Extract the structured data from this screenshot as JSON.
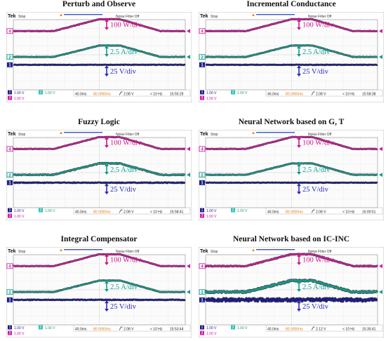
{
  "figure": {
    "panels": [
      {
        "title": "Perturb and Observe",
        "scope": {
          "brand": "Tek",
          "mode": "Stop",
          "filter_label": "Noise Filter Off",
          "ch1_scale": "1.00 V",
          "ch2_scale": "1.00 V",
          "ch3_scale": "1.00 V",
          "timebase": "40.0ms",
          "trigger_pos": "80.0000ms",
          "trigger_level": "2.08 V",
          "freq": "< 10 Hz",
          "timestamp": "15:55:29"
        }
      },
      {
        "title": "Incremental Conductance",
        "scope": {
          "brand": "Tek",
          "mode": "Stop",
          "filter_label": "Noise Filter Off",
          "ch1_scale": "1.00 V",
          "ch2_scale": "1.00 V",
          "ch3_scale": "1.00 V",
          "timebase": "40.0ms",
          "trigger_pos": "80.0000ms",
          "trigger_level": "2.08 V",
          "freq": "< 10 Hz",
          "timestamp": "15:58:38"
        }
      },
      {
        "title": "Fuzzy Logic",
        "scope": {
          "brand": "Tek",
          "mode": "Stop",
          "filter_label": "Noise Filter Off",
          "ch1_scale": "1.00 V",
          "ch2_scale": "1.00 V",
          "ch3_scale": "1.00 V",
          "timebase": "40.0ms",
          "trigger_pos": "80.0000ms",
          "trigger_level": "2.08 V",
          "freq": "< 10 Hz",
          "timestamp": "15:58:41"
        }
      },
      {
        "title": "Neural Network based on G, T",
        "scope": {
          "brand": "Tek",
          "mode": "Stop",
          "filter_label": "Noise Filter Off",
          "ch1_scale": "1.00 V",
          "ch2_scale": "1.00 V",
          "ch3_scale": "1.00 V",
          "timebase": "40.0ms",
          "trigger_pos": "80.0000ms",
          "trigger_level": "2.08 V",
          "freq": "< 10 Hz",
          "timestamp": "16:00:51"
        }
      },
      {
        "title": "Integral Compensator",
        "scope": {
          "brand": "Tek",
          "mode": "Stop",
          "filter_label": "Noise Filter Off",
          "ch1_scale": "1.00 V",
          "ch2_scale": "1.00 V",
          "ch3_scale": "1.00 V",
          "timebase": "40.0ms",
          "trigger_pos": "80.0000ms",
          "trigger_level": "2.08 V",
          "freq": "< 10 Hz",
          "timestamp": "15:53:44"
        }
      },
      {
        "title": "Neural Network based on IC-INC",
        "scope": {
          "brand": "Tek",
          "mode": "Stop",
          "filter_label": "Noise Filter Off",
          "ch1_scale": "1.00 V",
          "ch2_scale": "1.00 V",
          "ch3_scale": "1.00 V",
          "timebase": "40.0ms",
          "trigger_pos": "80.0000ms",
          "trigger_level": "2.12 V",
          "freq": "< 10 Hz",
          "timestamp": "15:35:41"
        }
      }
    ]
  },
  "chart_data": [
    {
      "type": "line",
      "title": "Perturb and Observe",
      "x_divisions": 10,
      "y_divisions": 8,
      "grid": true,
      "series": [
        {
          "name": "",
          "channel": 4,
          "scale_label": "100 W/div",
          "color": "#d01aa0",
          "x": [
            0,
            2.35,
            5.0,
            6.2,
            8.55,
            10
          ],
          "y": [
            6.7,
            6.7,
            8.05,
            8.05,
            6.7,
            6.7
          ],
          "noise": 0.03
        },
        {
          "name": "",
          "channel": 2,
          "scale_label": "2.5 A/div",
          "color": "#149b8c",
          "x": [
            0,
            2.35,
            5.0,
            6.2,
            8.55,
            10
          ],
          "y": [
            3.75,
            3.75,
            5.05,
            5.05,
            3.75,
            3.75
          ],
          "noise": 0.03
        },
        {
          "name": "",
          "channel": 1,
          "scale_label": "25 V/div",
          "color": "#1c1c8c",
          "x": [
            0,
            10
          ],
          "y": [
            2.85,
            2.85
          ],
          "noise": 0.03
        }
      ]
    },
    {
      "type": "line",
      "title": "Incremental Conductance",
      "x_divisions": 10,
      "y_divisions": 8,
      "grid": true,
      "series": [
        {
          "name": "",
          "channel": 4,
          "scale_label": "100 W/div",
          "color": "#d01aa0",
          "x": [
            0,
            2.35,
            5.0,
            6.2,
            8.55,
            10
          ],
          "y": [
            6.7,
            6.7,
            8.05,
            8.05,
            6.7,
            6.7
          ],
          "noise": 0.03
        },
        {
          "name": "",
          "channel": 2,
          "scale_label": "2.5 A/div",
          "color": "#149b8c",
          "x": [
            0,
            2.35,
            5.0,
            6.2,
            8.55,
            10
          ],
          "y": [
            3.75,
            3.75,
            5.05,
            5.05,
            3.75,
            3.75
          ],
          "noise": 0.03
        },
        {
          "name": "",
          "channel": 1,
          "scale_label": "25 V/div",
          "color": "#1c1c8c",
          "x": [
            0,
            10
          ],
          "y": [
            2.85,
            2.85
          ],
          "noise": 0.03
        }
      ]
    },
    {
      "type": "line",
      "title": "Fuzzy Logic",
      "x_divisions": 10,
      "y_divisions": 8,
      "grid": true,
      "series": [
        {
          "name": "",
          "channel": 4,
          "scale_label": "100 W/div",
          "color": "#d01aa0",
          "x": [
            0,
            2.35,
            5.0,
            6.2,
            8.55,
            10
          ],
          "y": [
            6.7,
            6.7,
            8.05,
            8.05,
            6.7,
            6.7
          ],
          "noise": 0.03
        },
        {
          "name": "",
          "channel": 2,
          "scale_label": "2.5 A/div",
          "color": "#149b8c",
          "x": [
            0,
            2.35,
            5.0,
            6.2,
            8.55,
            10
          ],
          "y": [
            3.75,
            3.75,
            5.05,
            5.05,
            3.75,
            3.75
          ],
          "noise": 0.05
        },
        {
          "name": "",
          "channel": 1,
          "scale_label": "25 V/div",
          "color": "#1c1c8c",
          "x": [
            0,
            10
          ],
          "y": [
            2.85,
            2.85
          ],
          "noise": 0.04
        }
      ]
    },
    {
      "type": "line",
      "title": "Neural Network based on G, T",
      "x_divisions": 10,
      "y_divisions": 8,
      "grid": true,
      "series": [
        {
          "name": "",
          "channel": 4,
          "scale_label": "100 W/div",
          "color": "#d01aa0",
          "x": [
            0,
            2.35,
            5.0,
            6.2,
            8.55,
            10
          ],
          "y": [
            6.7,
            6.7,
            8.05,
            8.05,
            6.7,
            6.7
          ],
          "noise": 0.03
        },
        {
          "name": "",
          "channel": 2,
          "scale_label": "2.5 A/div",
          "color": "#149b8c",
          "x": [
            0,
            2.35,
            5.0,
            6.2,
            8.55,
            10
          ],
          "y": [
            3.75,
            3.75,
            5.05,
            5.05,
            3.75,
            3.75
          ],
          "noise": 0.03
        },
        {
          "name": "",
          "channel": 1,
          "scale_label": "25 V/div",
          "color": "#1c1c8c",
          "x": [
            0,
            10
          ],
          "y": [
            2.85,
            2.85
          ],
          "noise": 0.03
        }
      ]
    },
    {
      "type": "line",
      "title": "Integral Compensator",
      "x_divisions": 10,
      "y_divisions": 8,
      "grid": true,
      "series": [
        {
          "name": "",
          "channel": 4,
          "scale_label": "100 W/div",
          "color": "#d01aa0",
          "x": [
            0,
            2.35,
            5.0,
            6.2,
            8.55,
            10
          ],
          "y": [
            6.7,
            6.7,
            8.05,
            8.05,
            6.7,
            6.7
          ],
          "noise": 0.03
        },
        {
          "name": "",
          "channel": 2,
          "scale_label": "2.5 A/div",
          "color": "#149b8c",
          "x": [
            0,
            2.35,
            5.0,
            6.2,
            8.55,
            10
          ],
          "y": [
            3.75,
            3.75,
            5.05,
            5.05,
            3.75,
            3.75
          ],
          "noise": 0.03
        },
        {
          "name": "",
          "channel": 1,
          "scale_label": "25 V/div",
          "color": "#1c1c8c",
          "x": [
            0,
            10
          ],
          "y": [
            2.85,
            2.85
          ],
          "noise": 0.04
        }
      ]
    },
    {
      "type": "line",
      "title": "Neural Network based on IC-INC",
      "x_divisions": 10,
      "y_divisions": 8,
      "grid": true,
      "series": [
        {
          "name": "",
          "channel": 4,
          "scale_label": "100 W/div",
          "color": "#d01aa0",
          "x": [
            0,
            2.35,
            5.0,
            6.2,
            8.55,
            10
          ],
          "y": [
            6.7,
            6.7,
            8.05,
            8.05,
            6.7,
            6.7
          ],
          "noise": 0.05
        },
        {
          "name": "",
          "channel": 2,
          "scale_label": "2.5 A/div",
          "color": "#149b8c",
          "x": [
            0,
            2.35,
            5.0,
            6.2,
            8.55,
            10
          ],
          "y": [
            3.75,
            3.75,
            5.05,
            5.05,
            3.75,
            3.75
          ],
          "noise": 0.1
        },
        {
          "name": "",
          "channel": 1,
          "scale_label": "25 V/div",
          "color": "#1c1c8c",
          "x": [
            0,
            10
          ],
          "y": [
            2.85,
            2.85
          ],
          "noise": 0.16
        }
      ]
    }
  ]
}
